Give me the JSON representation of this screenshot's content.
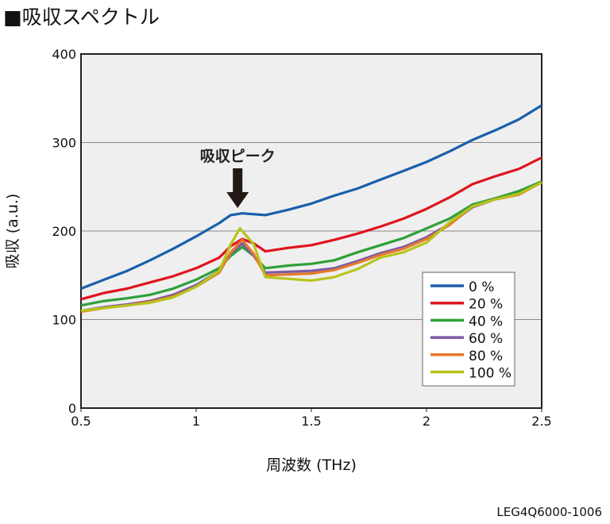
{
  "title": "■吸収スペクトル",
  "figure_code": "LEG4Q6000-1006",
  "chart_data": {
    "type": "line",
    "xlabel": "周波数 (THz)",
    "ylabel": "吸収 (a.u.)",
    "xlim": [
      0.5,
      2.5
    ],
    "ylim": [
      0,
      400
    ],
    "xticks": [
      "0.5",
      "1",
      "1.5",
      "2",
      "2.5"
    ],
    "yticks": [
      "0",
      "100",
      "200",
      "300",
      "400"
    ],
    "grid": "horizontal",
    "legend_position": "bottom-right",
    "annotation": {
      "text": "吸収ピーク",
      "x": 1.18
    },
    "series": [
      {
        "name": "0 %",
        "color": "#1a5fab",
        "x": [
          0.5,
          0.6,
          0.7,
          0.8,
          0.9,
          1.0,
          1.1,
          1.15,
          1.2,
          1.25,
          1.3,
          1.4,
          1.5,
          1.6,
          1.7,
          1.8,
          1.9,
          2.0,
          2.1,
          2.2,
          2.3,
          2.4,
          2.5
        ],
        "values": [
          135,
          145,
          155,
          167,
          180,
          194,
          209,
          218,
          220,
          219,
          218,
          224,
          231,
          240,
          248,
          258,
          268,
          278,
          290,
          303,
          314,
          326,
          342
        ]
      },
      {
        "name": "20 %",
        "color": "#e0141e",
        "x": [
          0.5,
          0.6,
          0.7,
          0.8,
          0.9,
          1.0,
          1.1,
          1.15,
          1.2,
          1.25,
          1.3,
          1.4,
          1.5,
          1.6,
          1.7,
          1.8,
          1.9,
          2.0,
          2.1,
          2.2,
          2.3,
          2.4,
          2.5
        ],
        "values": [
          123,
          130,
          135,
          142,
          149,
          158,
          170,
          183,
          191,
          186,
          177,
          181,
          184,
          190,
          197,
          205,
          214,
          225,
          238,
          253,
          262,
          270,
          283
        ]
      },
      {
        "name": "40 %",
        "color": "#2ea03a",
        "x": [
          0.5,
          0.6,
          0.7,
          0.8,
          0.9,
          1.0,
          1.1,
          1.15,
          1.2,
          1.25,
          1.3,
          1.4,
          1.5,
          1.6,
          1.7,
          1.8,
          1.9,
          2.0,
          2.1,
          2.2,
          2.3,
          2.4,
          2.5
        ],
        "values": [
          116,
          121,
          124,
          128,
          135,
          145,
          158,
          172,
          182,
          172,
          158,
          161,
          163,
          167,
          176,
          184,
          192,
          203,
          214,
          230,
          237,
          245,
          256
        ]
      },
      {
        "name": "60 %",
        "color": "#7b5ba6",
        "x": [
          0.5,
          0.6,
          0.7,
          0.8,
          0.9,
          1.0,
          1.1,
          1.15,
          1.2,
          1.25,
          1.3,
          1.4,
          1.5,
          1.6,
          1.7,
          1.8,
          1.9,
          2.0,
          2.1,
          2.2,
          2.3,
          2.4,
          2.5
        ],
        "values": [
          110,
          114,
          117,
          121,
          128,
          139,
          155,
          175,
          186,
          172,
          153,
          154,
          155,
          158,
          166,
          175,
          182,
          193,
          208,
          227,
          236,
          242,
          255
        ]
      },
      {
        "name": "80 %",
        "color": "#e57a2c",
        "x": [
          0.5,
          0.6,
          0.7,
          0.8,
          0.9,
          1.0,
          1.1,
          1.15,
          1.2,
          1.25,
          1.3,
          1.4,
          1.5,
          1.6,
          1.7,
          1.8,
          1.9,
          2.0,
          2.1,
          2.2,
          2.3,
          2.4,
          2.5
        ],
        "values": [
          109,
          113,
          116,
          120,
          126,
          137,
          153,
          176,
          190,
          174,
          150,
          151,
          152,
          156,
          164,
          173,
          180,
          191,
          207,
          228,
          236,
          241,
          255
        ]
      },
      {
        "name": "100 %",
        "color": "#b7c41a",
        "x": [
          0.5,
          0.6,
          0.7,
          0.8,
          0.9,
          1.0,
          1.1,
          1.15,
          1.19,
          1.25,
          1.3,
          1.4,
          1.5,
          1.6,
          1.7,
          1.8,
          1.9,
          2.0,
          2.1,
          2.2,
          2.3,
          2.4,
          2.5
        ],
        "values": [
          110,
          113,
          116,
          119,
          125,
          137,
          155,
          185,
          203,
          185,
          148,
          146,
          144,
          148,
          157,
          170,
          176,
          187,
          210,
          228,
          236,
          242,
          255
        ]
      }
    ]
  }
}
